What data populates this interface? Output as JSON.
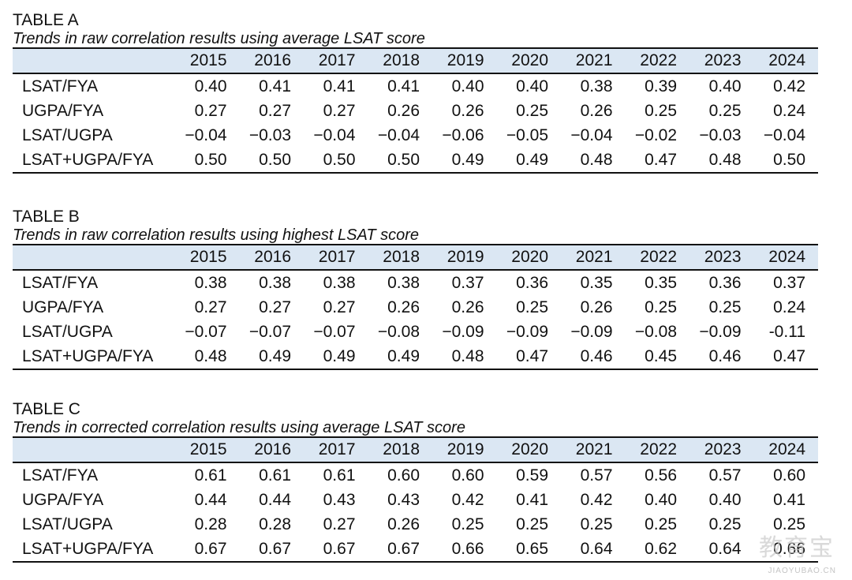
{
  "years": [
    "2015",
    "2016",
    "2017",
    "2018",
    "2019",
    "2020",
    "2021",
    "2022",
    "2023",
    "2024"
  ],
  "tables": [
    {
      "title": "TABLE A",
      "subtitle": "Trends in raw correlation results using average LSAT score",
      "rows": [
        {
          "label": "LSAT/FYA",
          "values": [
            "0.40",
            "0.41",
            "0.41",
            "0.41",
            "0.40",
            "0.40",
            "0.38",
            "0.39",
            "0.40",
            "0.42"
          ]
        },
        {
          "label": "UGPA/FYA",
          "values": [
            "0.27",
            "0.27",
            "0.27",
            "0.26",
            "0.26",
            "0.25",
            "0.26",
            "0.25",
            "0.25",
            "0.24"
          ]
        },
        {
          "label": "LSAT/UGPA",
          "values": [
            "−0.04",
            "−0.03",
            "−0.04",
            "−0.04",
            "−0.06",
            "−0.05",
            "−0.04",
            "−0.02",
            "−0.03",
            "−0.04"
          ]
        },
        {
          "label": "LSAT+UGPA/FYA",
          "values": [
            "0.50",
            "0.50",
            "0.50",
            "0.50",
            "0.49",
            "0.49",
            "0.48",
            "0.47",
            "0.48",
            "0.50"
          ]
        }
      ]
    },
    {
      "title": "TABLE B",
      "subtitle": "Trends in raw correlation results using highest LSAT score",
      "rows": [
        {
          "label": "LSAT/FYA",
          "values": [
            "0.38",
            "0.38",
            "0.38",
            "0.38",
            "0.37",
            "0.36",
            "0.35",
            "0.35",
            "0.36",
            "0.37"
          ]
        },
        {
          "label": "UGPA/FYA",
          "values": [
            "0.27",
            "0.27",
            "0.27",
            "0.26",
            "0.26",
            "0.25",
            "0.26",
            "0.25",
            "0.25",
            "0.24"
          ]
        },
        {
          "label": "LSAT/UGPA",
          "values": [
            "−0.07",
            "−0.07",
            "−0.07",
            "−0.08",
            "−0.09",
            "−0.09",
            "−0.09",
            "−0.08",
            "−0.09",
            "-0.11"
          ]
        },
        {
          "label": "LSAT+UGPA/FYA",
          "values": [
            "0.48",
            "0.49",
            "0.49",
            "0.49",
            "0.48",
            "0.47",
            "0.46",
            "0.45",
            "0.46",
            "0.47"
          ]
        }
      ]
    },
    {
      "title": "TABLE C",
      "subtitle": "Trends in corrected correlation results using average LSAT score",
      "rows": [
        {
          "label": "LSAT/FYA",
          "values": [
            "0.61",
            "0.61",
            "0.61",
            "0.60",
            "0.60",
            "0.59",
            "0.57",
            "0.56",
            "0.57",
            "0.60"
          ]
        },
        {
          "label": "UGPA/FYA",
          "values": [
            "0.44",
            "0.44",
            "0.43",
            "0.43",
            "0.42",
            "0.41",
            "0.42",
            "0.40",
            "0.40",
            "0.41"
          ]
        },
        {
          "label": "LSAT/UGPA",
          "values": [
            "0.28",
            "0.28",
            "0.27",
            "0.26",
            "0.25",
            "0.25",
            "0.25",
            "0.25",
            "0.25",
            "0.25"
          ]
        },
        {
          "label": "LSAT+UGPA/FYA",
          "values": [
            "0.67",
            "0.67",
            "0.67",
            "0.67",
            "0.66",
            "0.65",
            "0.64",
            "0.62",
            "0.64",
            "0.66"
          ]
        }
      ]
    }
  ],
  "watermark": {
    "text": "教育宝",
    "sub": "JIAOYUBAO.CN"
  }
}
